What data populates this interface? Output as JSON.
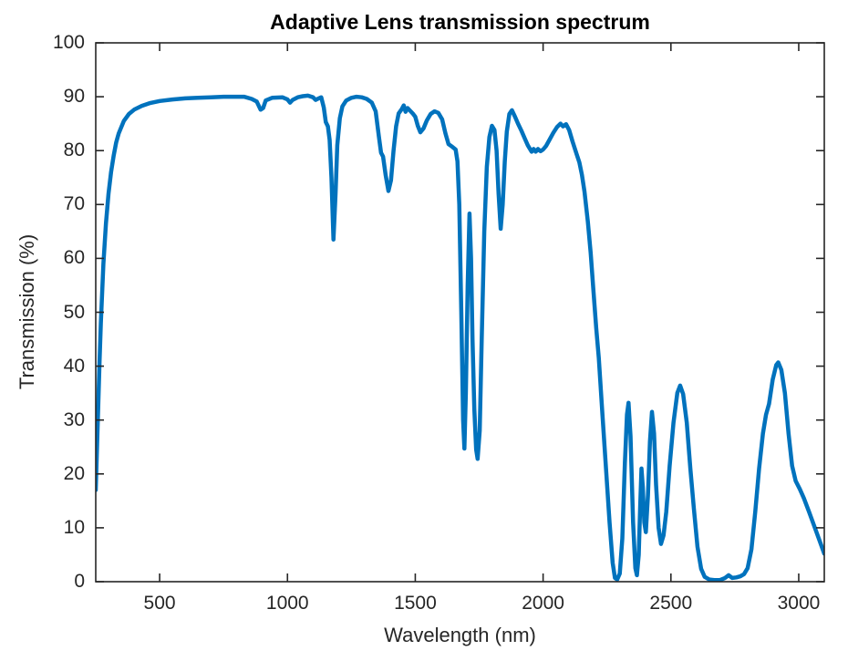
{
  "figure": {
    "background": "#ffffff"
  },
  "chart_data": {
    "type": "line",
    "title": "Adaptive Lens transmission spectrum",
    "xlabel": "Wavelength (nm)",
    "ylabel": "Transmission (%)",
    "xlim": [
      250,
      3100
    ],
    "ylim": [
      0,
      100
    ],
    "xticks": [
      500,
      1000,
      1500,
      2000,
      2500,
      3000
    ],
    "yticks": [
      0,
      10,
      20,
      30,
      40,
      50,
      60,
      70,
      80,
      90,
      100
    ],
    "grid": false,
    "legend": "none",
    "box": true,
    "line_color": "#0072BD",
    "axis_color": "#262626",
    "series": [
      {
        "name": "Transmission",
        "points": [
          [
            250,
            17
          ],
          [
            255,
            25
          ],
          [
            260,
            33
          ],
          [
            265,
            41
          ],
          [
            270,
            48
          ],
          [
            280,
            59
          ],
          [
            290,
            66.5
          ],
          [
            300,
            72
          ],
          [
            310,
            76
          ],
          [
            320,
            79
          ],
          [
            330,
            81.5
          ],
          [
            340,
            83.2
          ],
          [
            360,
            85.5
          ],
          [
            380,
            86.8
          ],
          [
            400,
            87.6
          ],
          [
            430,
            88.3
          ],
          [
            460,
            88.8
          ],
          [
            500,
            89.2
          ],
          [
            550,
            89.5
          ],
          [
            600,
            89.7
          ],
          [
            650,
            89.8
          ],
          [
            700,
            89.9
          ],
          [
            750,
            90
          ],
          [
            800,
            90
          ],
          [
            830,
            90
          ],
          [
            860,
            89.6
          ],
          [
            880,
            89.1
          ],
          [
            895,
            87.6
          ],
          [
            905,
            87.9
          ],
          [
            915,
            89.3
          ],
          [
            940,
            89.8
          ],
          [
            980,
            89.9
          ],
          [
            1000,
            89.5
          ],
          [
            1010,
            88.9
          ],
          [
            1020,
            89.4
          ],
          [
            1040,
            89.9
          ],
          [
            1060,
            90.1
          ],
          [
            1080,
            90.2
          ],
          [
            1100,
            89.9
          ],
          [
            1110,
            89.4
          ],
          [
            1122,
            89.7
          ],
          [
            1132,
            89.9
          ],
          [
            1142,
            88
          ],
          [
            1150,
            85.3
          ],
          [
            1158,
            84.5
          ],
          [
            1165,
            82
          ],
          [
            1172,
            75
          ],
          [
            1180,
            63.5
          ],
          [
            1188,
            72
          ],
          [
            1195,
            81
          ],
          [
            1205,
            86
          ],
          [
            1215,
            88.2
          ],
          [
            1230,
            89.3
          ],
          [
            1250,
            89.8
          ],
          [
            1270,
            90
          ],
          [
            1290,
            89.9
          ],
          [
            1310,
            89.6
          ],
          [
            1330,
            88.9
          ],
          [
            1345,
            87.3
          ],
          [
            1358,
            82.5
          ],
          [
            1366,
            79.6
          ],
          [
            1374,
            78.9
          ],
          [
            1384,
            75.5
          ],
          [
            1395,
            72.5
          ],
          [
            1405,
            74.5
          ],
          [
            1415,
            80
          ],
          [
            1425,
            84.5
          ],
          [
            1435,
            86.9
          ],
          [
            1447,
            87.7
          ],
          [
            1455,
            88.4
          ],
          [
            1462,
            87.2
          ],
          [
            1470,
            87.9
          ],
          [
            1480,
            87.4
          ],
          [
            1490,
            86.9
          ],
          [
            1500,
            86.3
          ],
          [
            1510,
            84.6
          ],
          [
            1520,
            83.4
          ],
          [
            1532,
            84.1
          ],
          [
            1545,
            85.6
          ],
          [
            1560,
            86.8
          ],
          [
            1575,
            87.3
          ],
          [
            1590,
            87
          ],
          [
            1605,
            85.8
          ],
          [
            1618,
            83.2
          ],
          [
            1630,
            81.2
          ],
          [
            1645,
            80.7
          ],
          [
            1658,
            80.2
          ],
          [
            1665,
            78
          ],
          [
            1672,
            70
          ],
          [
            1680,
            50
          ],
          [
            1687,
            30
          ],
          [
            1692,
            24.7
          ],
          [
            1698,
            35
          ],
          [
            1705,
            55
          ],
          [
            1712,
            68.3
          ],
          [
            1718,
            60
          ],
          [
            1724,
            45
          ],
          [
            1731,
            32
          ],
          [
            1738,
            24.5
          ],
          [
            1744,
            22.8
          ],
          [
            1752,
            28
          ],
          [
            1760,
            45
          ],
          [
            1770,
            65
          ],
          [
            1780,
            77
          ],
          [
            1790,
            82.5
          ],
          [
            1800,
            84.6
          ],
          [
            1810,
            83.8
          ],
          [
            1818,
            80
          ],
          [
            1826,
            72
          ],
          [
            1834,
            65.5
          ],
          [
            1842,
            70
          ],
          [
            1850,
            78
          ],
          [
            1858,
            83.5
          ],
          [
            1868,
            86.8
          ],
          [
            1878,
            87.5
          ],
          [
            1890,
            86.3
          ],
          [
            1902,
            85
          ],
          [
            1915,
            83.7
          ],
          [
            1928,
            82.3
          ],
          [
            1940,
            81
          ],
          [
            1955,
            79.8
          ],
          [
            1963,
            80.3
          ],
          [
            1971,
            79.8
          ],
          [
            1980,
            80.3
          ],
          [
            1990,
            79.9
          ],
          [
            2000,
            80.2
          ],
          [
            2012,
            80.9
          ],
          [
            2025,
            82
          ],
          [
            2040,
            83.3
          ],
          [
            2055,
            84.4
          ],
          [
            2068,
            85
          ],
          [
            2078,
            84.5
          ],
          [
            2090,
            84.9
          ],
          [
            2102,
            83.8
          ],
          [
            2115,
            81.7
          ],
          [
            2130,
            79.5
          ],
          [
            2142,
            77.8
          ],
          [
            2152,
            75.5
          ],
          [
            2162,
            72.4
          ],
          [
            2175,
            66.8
          ],
          [
            2186,
            61
          ],
          [
            2196,
            54.5
          ],
          [
            2208,
            47
          ],
          [
            2218,
            41.5
          ],
          [
            2232,
            31
          ],
          [
            2246,
            21
          ],
          [
            2260,
            11
          ],
          [
            2272,
            3.5
          ],
          [
            2281,
            0.7
          ],
          [
            2290,
            0.4
          ],
          [
            2300,
            1.5
          ],
          [
            2310,
            8
          ],
          [
            2320,
            22
          ],
          [
            2328,
            31
          ],
          [
            2334,
            33.2
          ],
          [
            2342,
            27
          ],
          [
            2352,
            11
          ],
          [
            2361,
            2.5
          ],
          [
            2367,
            1.2
          ],
          [
            2374,
            5
          ],
          [
            2380,
            14
          ],
          [
            2385,
            21
          ],
          [
            2390,
            17.5
          ],
          [
            2396,
            11
          ],
          [
            2402,
            9.2
          ],
          [
            2410,
            16
          ],
          [
            2418,
            26
          ],
          [
            2426,
            31.5
          ],
          [
            2434,
            27.5
          ],
          [
            2442,
            18
          ],
          [
            2452,
            10
          ],
          [
            2461,
            7
          ],
          [
            2471,
            8.6
          ],
          [
            2482,
            13
          ],
          [
            2495,
            21.5
          ],
          [
            2510,
            29.5
          ],
          [
            2525,
            35
          ],
          [
            2536,
            36.4
          ],
          [
            2548,
            34.8
          ],
          [
            2562,
            29.5
          ],
          [
            2576,
            21
          ],
          [
            2590,
            13.5
          ],
          [
            2604,
            6.5
          ],
          [
            2618,
            2.4
          ],
          [
            2632,
            0.9
          ],
          [
            2650,
            0.4
          ],
          [
            2670,
            0.3
          ],
          [
            2692,
            0.3
          ],
          [
            2712,
            0.7
          ],
          [
            2726,
            1.2
          ],
          [
            2740,
            0.7
          ],
          [
            2756,
            0.8
          ],
          [
            2772,
            1
          ],
          [
            2786,
            1.4
          ],
          [
            2800,
            2.5
          ],
          [
            2815,
            6
          ],
          [
            2830,
            13
          ],
          [
            2845,
            21
          ],
          [
            2860,
            27.5
          ],
          [
            2872,
            31
          ],
          [
            2884,
            33
          ],
          [
            2898,
            37.5
          ],
          [
            2912,
            40.2
          ],
          [
            2920,
            40.7
          ],
          [
            2932,
            39.3
          ],
          [
            2946,
            35
          ],
          [
            2960,
            27.5
          ],
          [
            2974,
            21.5
          ],
          [
            2988,
            18.7
          ],
          [
            3004,
            17.2
          ],
          [
            3020,
            15.5
          ],
          [
            3040,
            13
          ],
          [
            3060,
            10.4
          ],
          [
            3080,
            7.8
          ],
          [
            3100,
            5.2
          ]
        ]
      }
    ]
  }
}
